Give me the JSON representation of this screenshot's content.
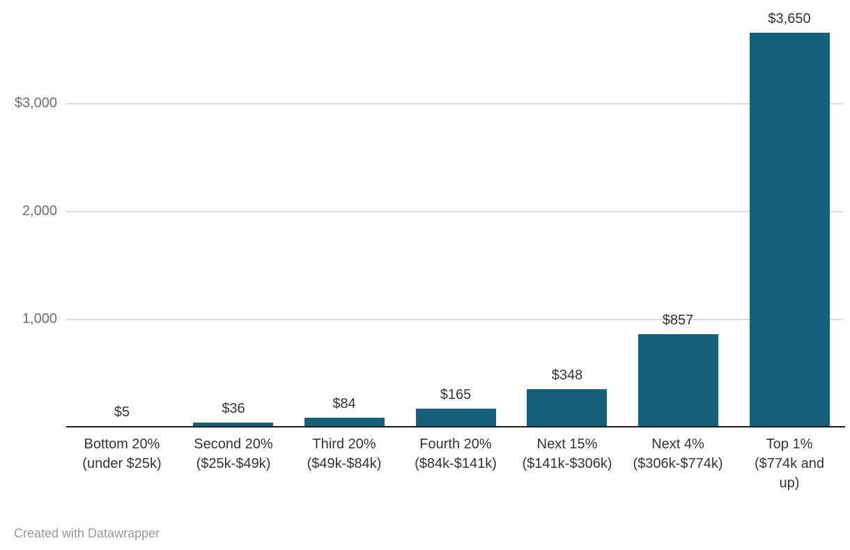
{
  "chart_data": {
    "type": "bar",
    "title": "",
    "categories": [
      "Bottom 20% (under $25k)",
      "Second 20% ($25k-$49k)",
      "Third 20% ($49k-$84k)",
      "Fourth 20% ($84k-$141k)",
      "Next 15% ($141k-$306k)",
      "Next 4% ($306k-$774k)",
      "Top 1% ($774k and up)"
    ],
    "category_lines": [
      [
        "Bottom 20%",
        "(under $25k)"
      ],
      [
        "Second 20%",
        "($25k-$49k)"
      ],
      [
        "Third 20%",
        "($49k-$84k)"
      ],
      [
        "Fourth 20%",
        "($84k-$141k)"
      ],
      [
        "Next 15%",
        "($141k-$306k)"
      ],
      [
        "Next 4%",
        "($306k-$774k)"
      ],
      [
        "Top 1%",
        "($774k and",
        "up)"
      ]
    ],
    "values": [
      5,
      36,
      84,
      165,
      348,
      857,
      3650
    ],
    "value_labels": [
      "$5",
      "$36",
      "$84",
      "$165",
      "$348",
      "$857",
      "$3,650"
    ],
    "y_ticks": [
      {
        "value": 1000,
        "label": "1,000"
      },
      {
        "value": 2000,
        "label": "2,000"
      },
      {
        "value": 3000,
        "label": "$3,000"
      }
    ],
    "ylim": [
      0,
      3650
    ],
    "xlabel": "",
    "ylabel": "",
    "grid": "horizontal",
    "legend_position": "none"
  },
  "colors": {
    "bar": "#15607a",
    "axis_line": "#1a1a1a",
    "gridline": "#dadada",
    "tick_label": "#6e6e6e",
    "value_label": "#333333",
    "category_label": "#333333",
    "attribution": "#999999",
    "background": "#ffffff"
  },
  "footer": {
    "attribution": "Created with Datawrapper"
  }
}
